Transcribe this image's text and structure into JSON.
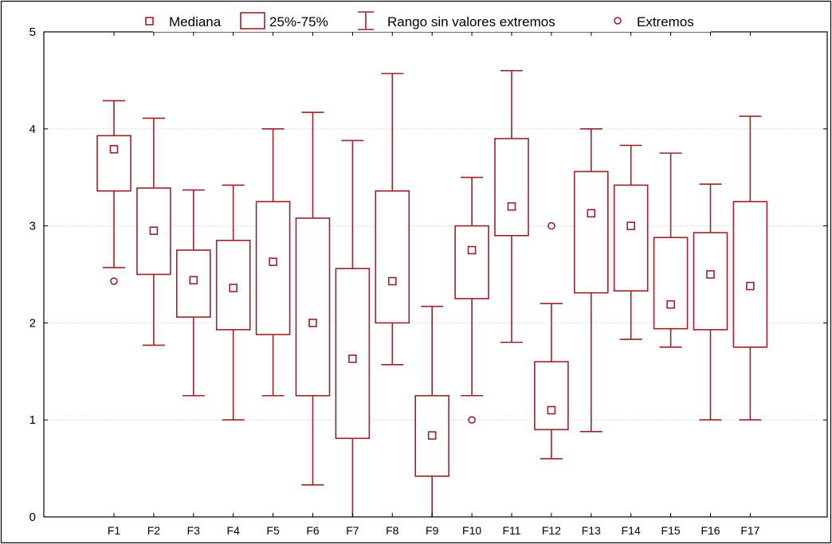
{
  "chart_data": {
    "type": "boxplot",
    "title": "",
    "xlabel": "",
    "ylabel": "",
    "ylim": [
      0,
      5
    ],
    "yticks": [
      "0",
      "1",
      "2",
      "3",
      "4",
      "5"
    ],
    "grid": "horizontal dotted",
    "legend_position": "top",
    "legend": {
      "median": "Mediana",
      "box": "25%-75%",
      "whisker": "Rango sin valores extremos",
      "outlier": "Extremos"
    },
    "color": "#9b2226",
    "categories": [
      "F1",
      "F2",
      "F3",
      "F4",
      "F5",
      "F6",
      "F7",
      "F8",
      "F9",
      "F10",
      "F11",
      "F12",
      "F13",
      "F14",
      "F15",
      "F16",
      "F17"
    ],
    "boxes": [
      {
        "label": "F1",
        "median": 3.79,
        "q1": 3.36,
        "q3": 3.93,
        "whisker_low": 2.57,
        "whisker_high": 4.29,
        "outliers": [
          2.43
        ]
      },
      {
        "label": "F2",
        "median": 2.95,
        "q1": 2.5,
        "q3": 3.39,
        "whisker_low": 1.77,
        "whisker_high": 4.11,
        "outliers": []
      },
      {
        "label": "F3",
        "median": 2.44,
        "q1": 2.06,
        "q3": 2.75,
        "whisker_low": 1.25,
        "whisker_high": 3.37,
        "outliers": []
      },
      {
        "label": "F4",
        "median": 2.36,
        "q1": 1.93,
        "q3": 2.85,
        "whisker_low": 1.0,
        "whisker_high": 3.42,
        "outliers": []
      },
      {
        "label": "F5",
        "median": 2.63,
        "q1": 1.88,
        "q3": 3.25,
        "whisker_low": 1.25,
        "whisker_high": 4.0,
        "outliers": []
      },
      {
        "label": "F6",
        "median": 2.0,
        "q1": 1.25,
        "q3": 3.08,
        "whisker_low": 0.33,
        "whisker_high": 4.17,
        "outliers": []
      },
      {
        "label": "F7",
        "median": 1.63,
        "q1": 0.81,
        "q3": 2.56,
        "whisker_low": 0.0,
        "whisker_high": 3.88,
        "outliers": []
      },
      {
        "label": "F8",
        "median": 2.43,
        "q1": 2.0,
        "q3": 3.36,
        "whisker_low": 1.57,
        "whisker_high": 4.57,
        "outliers": []
      },
      {
        "label": "F9",
        "median": 0.84,
        "q1": 0.42,
        "q3": 1.25,
        "whisker_low": 0.0,
        "whisker_high": 2.17,
        "outliers": []
      },
      {
        "label": "F10",
        "median": 2.75,
        "q1": 2.25,
        "q3": 3.0,
        "whisker_low": 1.25,
        "whisker_high": 3.5,
        "outliers": [
          1.0
        ]
      },
      {
        "label": "F11",
        "median": 3.2,
        "q1": 2.9,
        "q3": 3.9,
        "whisker_low": 1.8,
        "whisker_high": 4.6,
        "outliers": []
      },
      {
        "label": "F12",
        "median": 1.1,
        "q1": 0.9,
        "q3": 1.6,
        "whisker_low": 0.6,
        "whisker_high": 2.2,
        "outliers": [
          3.0
        ]
      },
      {
        "label": "F13",
        "median": 3.13,
        "q1": 2.31,
        "q3": 3.56,
        "whisker_low": 0.88,
        "whisker_high": 4.0,
        "outliers": []
      },
      {
        "label": "F14",
        "median": 3.0,
        "q1": 2.33,
        "q3": 3.42,
        "whisker_low": 1.83,
        "whisker_high": 3.83,
        "outliers": []
      },
      {
        "label": "F15",
        "median": 2.19,
        "q1": 1.94,
        "q3": 2.88,
        "whisker_low": 1.75,
        "whisker_high": 3.75,
        "outliers": []
      },
      {
        "label": "F16",
        "median": 2.5,
        "q1": 1.93,
        "q3": 2.93,
        "whisker_low": 1.0,
        "whisker_high": 3.43,
        "outliers": []
      },
      {
        "label": "F17",
        "median": 2.38,
        "q1": 1.75,
        "q3": 3.25,
        "whisker_low": 1.0,
        "whisker_high": 4.13,
        "outliers": []
      }
    ]
  }
}
